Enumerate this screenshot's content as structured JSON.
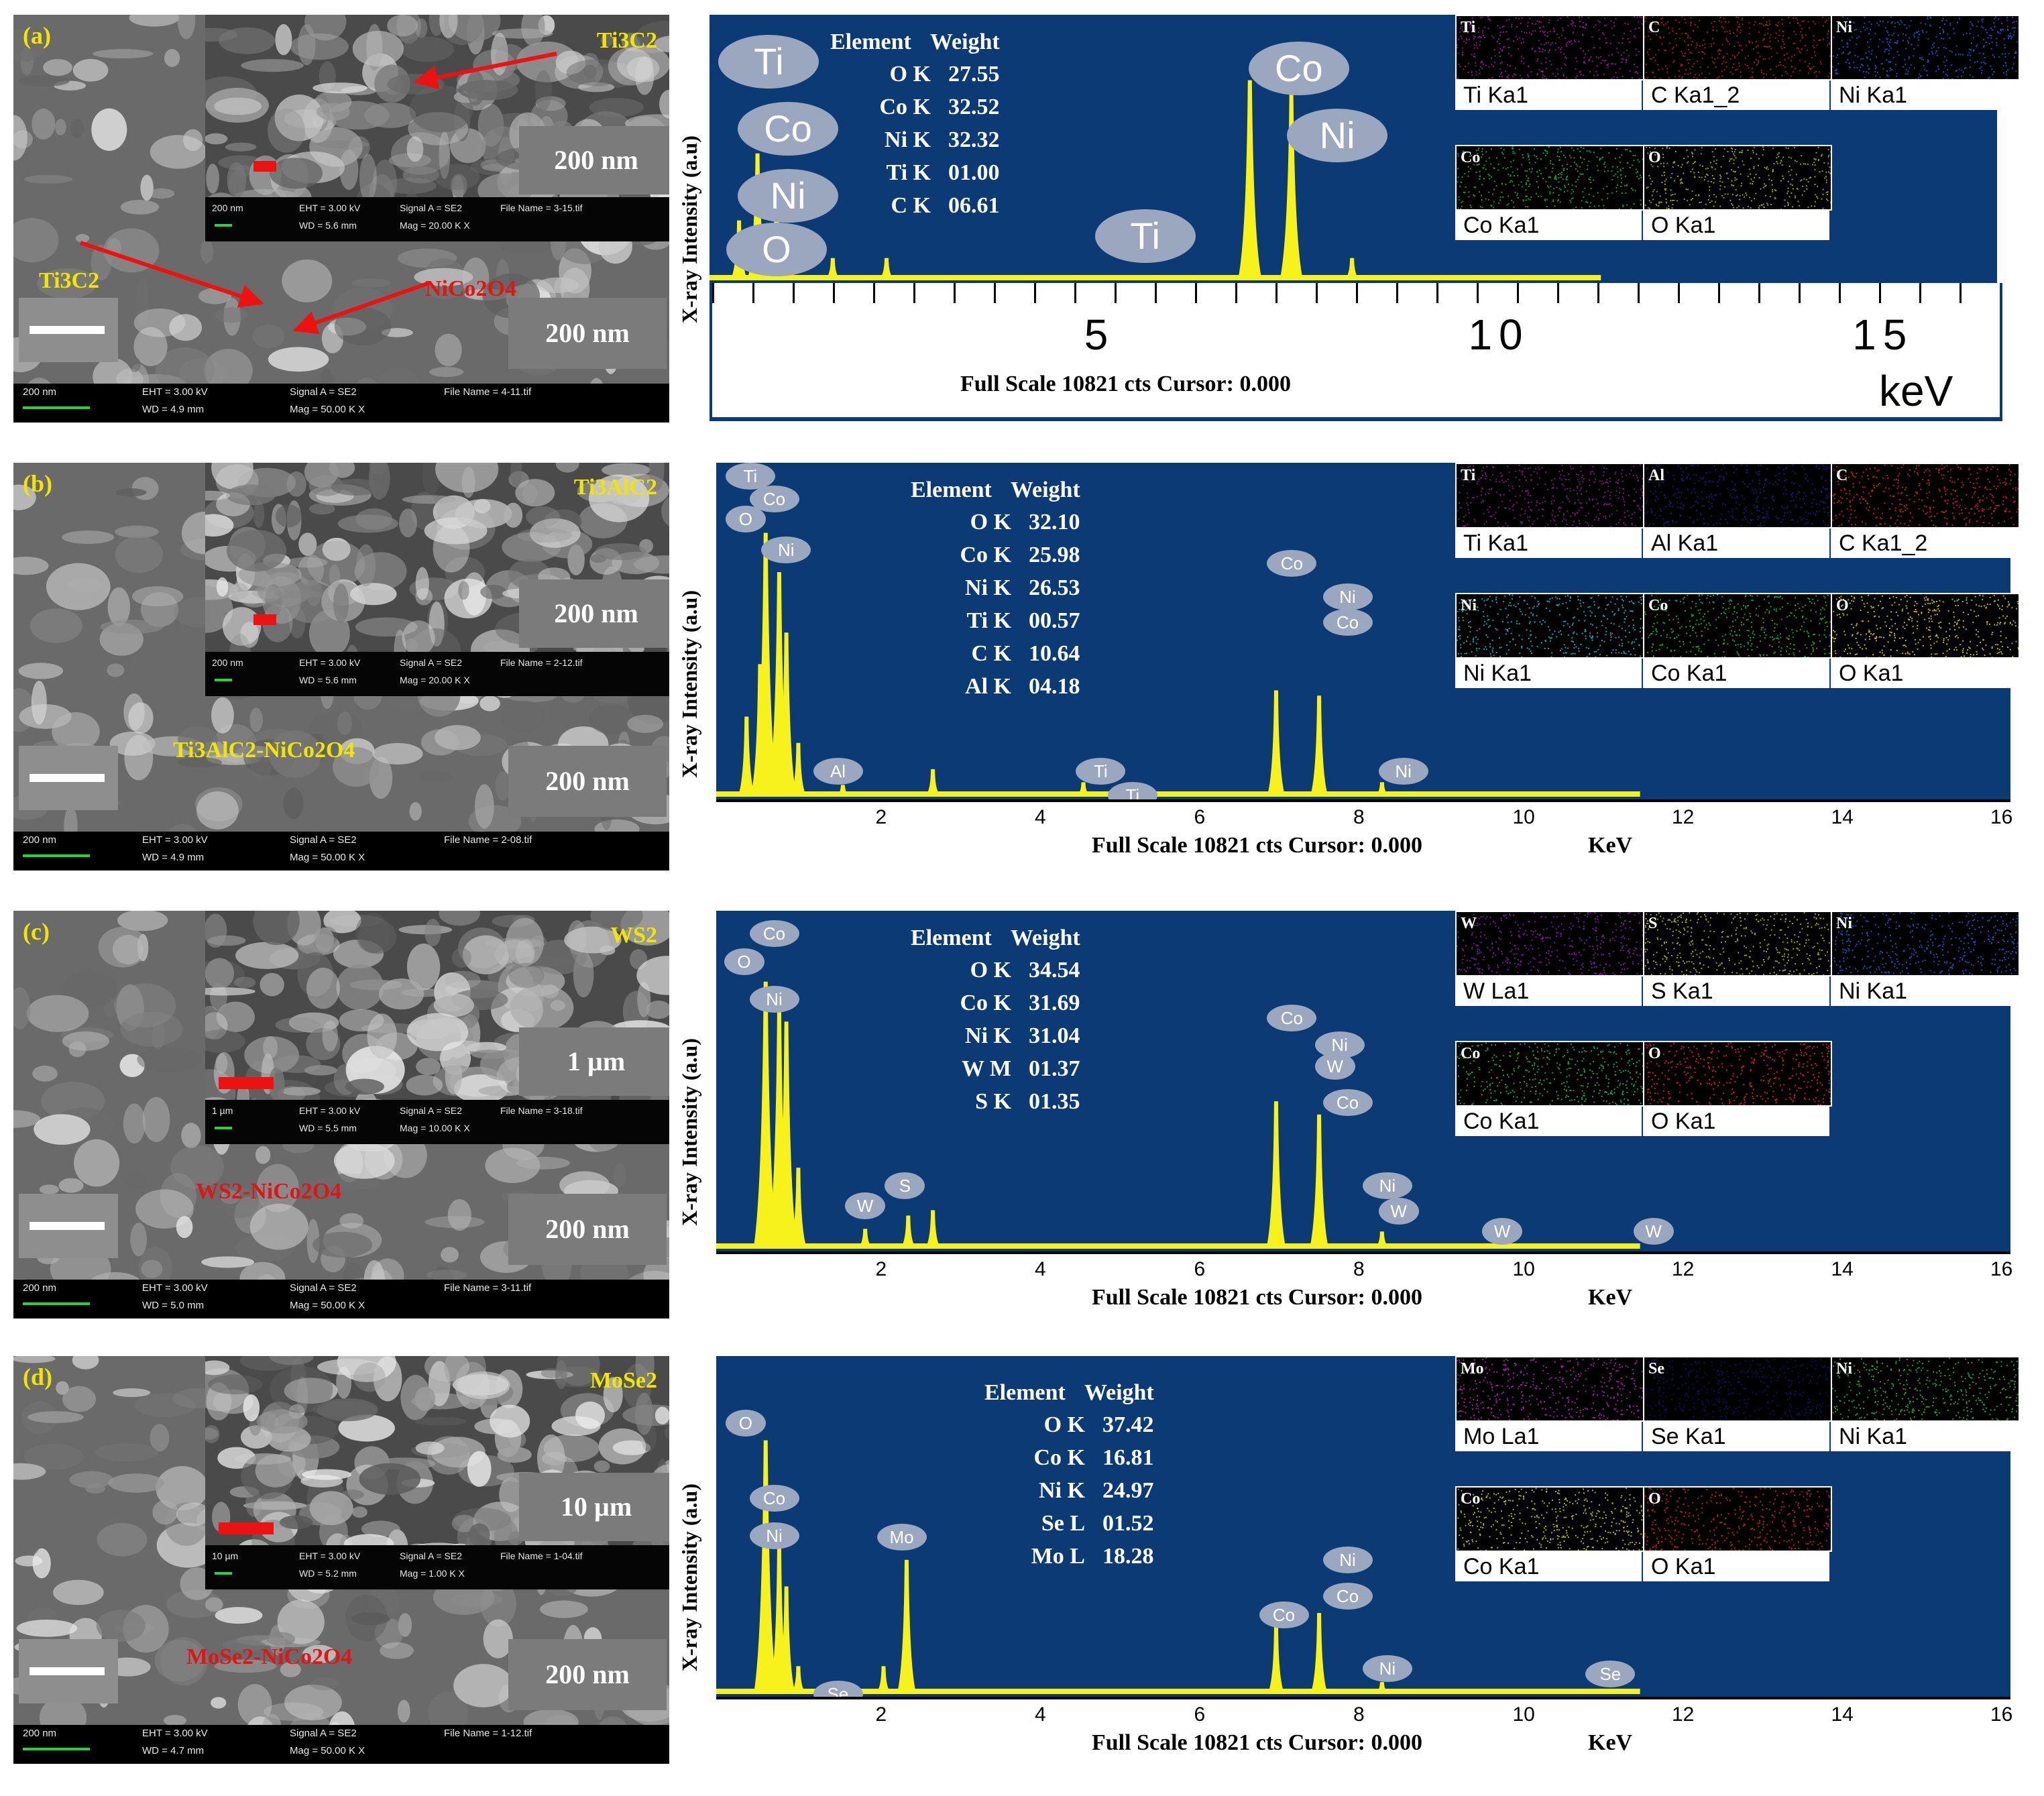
{
  "panels": [
    {
      "label": "(a)",
      "sem": {
        "inset_material": "Ti3C2",
        "inset_scale": "200 nm",
        "inset_databar": [
          "200 nm",
          "EHT = 3.00 kV",
          "Signal A = SE2",
          "File Name = 3-15.tif",
          "WD = 5.6 mm",
          "Mag = 20.00 K X"
        ],
        "main_labels": [
          "Ti3C2",
          "NiCo2O4"
        ],
        "main_scale": "200 nm",
        "databar": [
          "200 nm",
          "EHT = 3.00 kV",
          "Signal A = SE2",
          "File Name = 4-11.tif",
          "WD = 4.9 mm",
          "Mag = 50.00 K X"
        ]
      },
      "eds": {
        "ylabel": "X-ray Intensity (a.u)",
        "table_header": [
          "Element",
          "Weight"
        ],
        "table": [
          [
            "O K",
            "27.55"
          ],
          [
            "Co K",
            "32.52"
          ],
          [
            "Ni K",
            "32.32"
          ],
          [
            "Ti K",
            "01.00"
          ],
          [
            "C K",
            "06.61"
          ]
        ],
        "footer": "Full Scale 10821 cts Cursor: 0.000",
        "unit": "keV",
        "ticks": [
          "5",
          "10",
          "15"
        ],
        "maps": [
          {
            "tag": "Ti",
            "caption": "Ti Ka1",
            "color": "#8a1a8a"
          },
          {
            "tag": "C",
            "caption": "C Ka1_2",
            "color": "#a02020"
          },
          {
            "tag": "Ni",
            "caption": "Ni Ka1",
            "color": "#2050c0"
          },
          {
            "tag": "Co",
            "caption": "Co Ka1",
            "color": "#1f9a3a"
          },
          {
            "tag": "O",
            "caption": "O Ka1",
            "color": "#9a9a20"
          }
        ],
        "peak_labels": [
          "Ti",
          "Co",
          "Ni",
          "O",
          "Ti",
          "Co",
          "Ni"
        ]
      }
    },
    {
      "label": "(b)",
      "sem": {
        "inset_material": "Ti3AlC2",
        "inset_scale": "200 nm",
        "inset_databar": [
          "200 nm",
          "EHT = 3.00 kV",
          "Signal A = SE2",
          "File Name = 2-12.tif",
          "WD = 5.6 mm",
          "Mag = 20.00 K X"
        ],
        "main_labels": [
          "Ti3AlC2-NiCo2O4"
        ],
        "main_scale": "200 nm",
        "databar": [
          "200 nm",
          "EHT = 3.00 kV",
          "Signal A = SE2",
          "File Name = 2-08.tif",
          "WD = 4.9 mm",
          "Mag = 50.00 K X"
        ]
      },
      "eds": {
        "ylabel": "X-ray Intensity (a.u)",
        "table_header": [
          "Element",
          "Weight"
        ],
        "table": [
          [
            "O K",
            "32.10"
          ],
          [
            "Co K",
            "25.98"
          ],
          [
            "Ni K",
            "26.53"
          ],
          [
            "Ti K",
            "00.57"
          ],
          [
            "C K",
            "10.64"
          ],
          [
            "Al K",
            "04.18"
          ]
        ],
        "footer": "Full Scale 10821 cts Cursor: 0.000",
        "unit": "KeV",
        "ticks": [
          "2",
          "4",
          "6",
          "8",
          "10",
          "12",
          "14",
          "16"
        ],
        "maps": [
          {
            "tag": "Ti",
            "caption": "Ti Ka1",
            "color": "#7a1a7a"
          },
          {
            "tag": "Al",
            "caption": "Al Ka1",
            "color": "#1a1a7a"
          },
          {
            "tag": "C",
            "caption": "C Ka1_2",
            "color": "#c02020"
          },
          {
            "tag": "Ni",
            "caption": "Ni Ka1",
            "color": "#20a0b0"
          },
          {
            "tag": "Co",
            "caption": "Co Ka1",
            "color": "#20a030"
          },
          {
            "tag": "O",
            "caption": "O Ka1",
            "color": "#c0b020"
          }
        ],
        "peak_labels": [
          "Ti",
          "Co",
          "O",
          "Ni",
          "Al",
          "Ti",
          "Ti",
          "Co",
          "Ni",
          "Co",
          "Ni"
        ]
      }
    },
    {
      "label": "(c)",
      "sem": {
        "inset_material": "WS2",
        "inset_scale": "1 µm",
        "inset_databar": [
          "1 µm",
          "EHT = 3.00 kV",
          "Signal A = SE2",
          "File Name = 3-18.tif",
          "WD = 5.5 mm",
          "Mag = 10.00 K X"
        ],
        "main_labels": [
          "WS2-NiCo2O4"
        ],
        "main_scale": "200 nm",
        "databar": [
          "200 nm",
          "EHT = 3.00 kV",
          "Signal A = SE2",
          "File Name = 3-11.tif",
          "WD = 5.0 mm",
          "Mag = 50.00 K X"
        ]
      },
      "eds": {
        "ylabel": "X-ray Intensity (a.u)",
        "table_header": [
          "Element",
          "Weight"
        ],
        "table": [
          [
            "O K",
            "34.54"
          ],
          [
            "Co K",
            "31.69"
          ],
          [
            "Ni K",
            "31.04"
          ],
          [
            "W M",
            "01.37"
          ],
          [
            "S K",
            "01.35"
          ]
        ],
        "footer": "Full Scale 10821 cts Cursor: 0.000",
        "unit": "KeV",
        "ticks": [
          "2",
          "4",
          "6",
          "8",
          "10",
          "12",
          "14",
          "16"
        ],
        "maps": [
          {
            "tag": "W",
            "caption": "W La1",
            "color": "#7a1a9a"
          },
          {
            "tag": "S",
            "caption": "S Ka1",
            "color": "#a0a020"
          },
          {
            "tag": "Ni",
            "caption": "Ni Ka1",
            "color": "#2050c0"
          },
          {
            "tag": "Co",
            "caption": "Co Ka1",
            "color": "#20a040"
          },
          {
            "tag": "O",
            "caption": "O Ka1",
            "color": "#d02020"
          }
        ],
        "peak_labels": [
          "Co",
          "O",
          "Ni",
          "W",
          "S",
          "Co",
          "Ni",
          "W",
          "Co",
          "Ni",
          "W",
          "W",
          "W"
        ]
      }
    },
    {
      "label": "(d)",
      "sem": {
        "inset_material": "MoSe2",
        "inset_scale": "10 µm",
        "inset_databar": [
          "10 µm",
          "EHT = 3.00 kV",
          "Signal A = SE2",
          "File Name = 1-04.tif",
          "WD = 5.2 mm",
          "Mag = 1.00 K X"
        ],
        "main_labels": [
          "MoSe2-NiCo2O4"
        ],
        "main_scale": "200 nm",
        "databar": [
          "200 nm",
          "EHT = 3.00 kV",
          "Signal A = SE2",
          "File Name = 1-12.tif",
          "WD = 4.7 mm",
          "Mag = 50.00 K X"
        ]
      },
      "eds": {
        "ylabel": "X-ray Intensity (a.u)",
        "table_header": [
          "Element",
          "Weight"
        ],
        "table": [
          [
            "O K",
            "37.42"
          ],
          [
            "Co K",
            "16.81"
          ],
          [
            "Ni K",
            "24.97"
          ],
          [
            "Se L",
            "01.52"
          ],
          [
            "Mo L",
            "18.28"
          ]
        ],
        "footer": "Full Scale 10821 cts Cursor: 0.000",
        "unit": "KeV",
        "ticks": [
          "2",
          "4",
          "6",
          "8",
          "10",
          "12",
          "14",
          "16"
        ],
        "maps": [
          {
            "tag": "Mo",
            "caption": "Mo La1",
            "color": "#a020a0"
          },
          {
            "tag": "Se",
            "caption": "Se Ka1",
            "color": "#101060"
          },
          {
            "tag": "Ni",
            "caption": "Ni Ka1",
            "color": "#20a040"
          },
          {
            "tag": "Co",
            "caption": "Co Ka1",
            "color": "#b0b020"
          },
          {
            "tag": "O",
            "caption": "O Ka1",
            "color": "#c02020"
          }
        ],
        "peak_labels": [
          "O",
          "Co",
          "Ni",
          "Mo",
          "Se",
          "Ni",
          "Co",
          "Co",
          "Ni",
          "Se"
        ]
      }
    }
  ],
  "chart_data": [
    {
      "type": "line",
      "title": "(a)",
      "xlabel": "keV",
      "ylabel": "X-ray Intensity (a.u)",
      "xlim": [
        0,
        16.5
      ],
      "series": [
        {
          "x": [
            0.28,
            0.52,
            0.77,
            0.93,
            1.5,
            2.2,
            6.93,
            7.47,
            8.26
          ],
          "values": [
            0.28,
            0.6,
            0.4,
            0.12,
            0.1,
            0.1,
            0.95,
            0.88,
            0.1
          ]
        }
      ]
    },
    {
      "type": "line",
      "title": "(b)",
      "xlabel": "KeV",
      "ylabel": "X-ray Intensity (a.u)",
      "xlim": [
        0,
        16
      ],
      "series": [
        {
          "x": [
            0.28,
            0.45,
            0.52,
            0.69,
            0.78,
            0.93,
            1.49,
            2.62,
            4.51,
            4.93,
            6.93,
            7.47,
            8.26
          ],
          "values": [
            0.3,
            0.5,
            1.0,
            0.85,
            0.62,
            0.2,
            0.04,
            0.1,
            0.05,
            0.02,
            0.4,
            0.38,
            0.05
          ]
        }
      ]
    },
    {
      "type": "line",
      "title": "(c)",
      "xlabel": "KeV",
      "ylabel": "X-ray Intensity (a.u)",
      "xlim": [
        0,
        16
      ],
      "series": [
        {
          "x": [
            0.52,
            0.69,
            0.78,
            0.93,
            1.77,
            2.31,
            2.62,
            6.93,
            7.47,
            8.26,
            9.67,
            11.29
          ],
          "values": [
            1.0,
            0.9,
            0.85,
            0.3,
            0.07,
            0.12,
            0.14,
            0.55,
            0.5,
            0.06,
            0.01,
            0.01
          ]
        }
      ]
    },
    {
      "type": "line",
      "title": "(d)",
      "xlabel": "KeV",
      "ylabel": "X-ray Intensity (a.u)",
      "xlim": [
        0,
        16
      ],
      "series": [
        {
          "x": [
            0.52,
            0.69,
            0.78,
            0.93,
            1.37,
            2.0,
            2.29,
            6.93,
            7.47,
            8.26,
            11.22
          ],
          "values": [
            0.95,
            0.55,
            0.4,
            0.1,
            0.04,
            0.1,
            0.5,
            0.25,
            0.3,
            0.04,
            0.01
          ]
        }
      ]
    }
  ]
}
